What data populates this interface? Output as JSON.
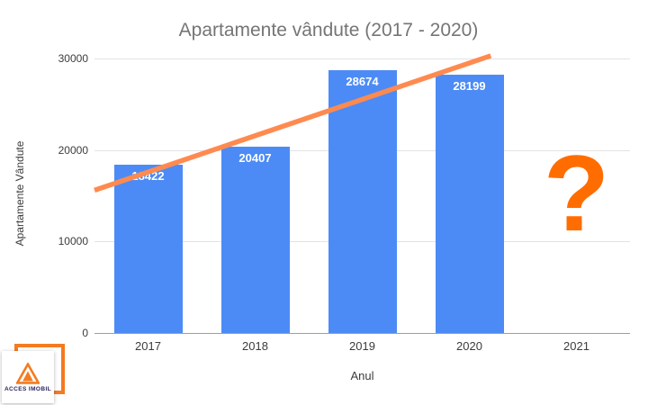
{
  "page": {
    "background": "#ffffff"
  },
  "chart_data": {
    "type": "bar",
    "title": "Apartamente vândute (2017 - 2020)",
    "xlabel": "Anul",
    "ylabel": "Apartamente Vândute",
    "categories": [
      "2017",
      "2018",
      "2019",
      "2020",
      "2021"
    ],
    "values": [
      18422,
      20407,
      28674,
      28199,
      null
    ],
    "ylim": [
      0,
      30000
    ],
    "yticks": [
      0,
      10000,
      20000,
      30000
    ],
    "ytick_labels": [
      "0",
      "10000",
      "20000",
      "30000"
    ],
    "grid": true,
    "legend": "none",
    "bar_color": "#4c8bf5",
    "bar_label_color": "#ffffff",
    "title_color": "#757575",
    "axis_text_color": "#3c3c3c",
    "grid_color": "#e3e3e3",
    "baseline_color": "#9e9e9e",
    "trendline": {
      "color": "#ff8a50",
      "width": 5.5,
      "start": {
        "x_frac": 0.0,
        "value": 15600
      },
      "end": {
        "x_frac": 0.74,
        "value": 30300
      }
    },
    "annotations": [
      {
        "text": "?",
        "category": "2021",
        "value": 15200,
        "color": "#ff6d00",
        "font_size": 120
      }
    ]
  },
  "logo": {
    "brand": "ACCES IMOBIL",
    "triangle_icon_color": "#f47b20"
  }
}
